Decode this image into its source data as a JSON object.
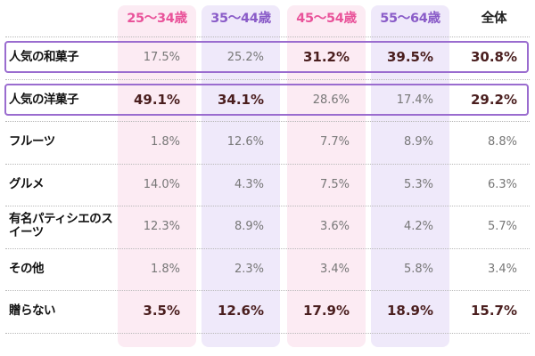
{
  "chart_data": {
    "type": "table",
    "columns": [
      "25〜34歳",
      "35〜44歳",
      "45〜54歳",
      "55〜64歳",
      "全体"
    ],
    "column_colors": [
      "#e9539a",
      "#8a5cc8",
      "#e9539a",
      "#8a5cc8",
      "#222222"
    ],
    "column_backgrounds": [
      "#fcebf3",
      "#efe9fa",
      "#fcebf3",
      "#efe9fa",
      "transparent"
    ],
    "highlight_border_color": "#9a6ccf",
    "highlighted_rows": [
      0,
      1
    ],
    "rows": [
      {
        "label": "人気の和菓子",
        "values": [
          "17.5%",
          "25.2%",
          "31.2%",
          "39.5%",
          "30.8%"
        ],
        "bold": [
          false,
          false,
          true,
          true,
          true
        ]
      },
      {
        "label": "人気の洋菓子",
        "values": [
          "49.1%",
          "34.1%",
          "28.6%",
          "17.4%",
          "29.2%"
        ],
        "bold": [
          true,
          true,
          false,
          false,
          true
        ]
      },
      {
        "label": "フルーツ",
        "values": [
          "1.8%",
          "12.6%",
          "7.7%",
          "8.9%",
          "8.8%"
        ],
        "bold": [
          false,
          false,
          false,
          false,
          false
        ]
      },
      {
        "label": "グルメ",
        "values": [
          "14.0%",
          "4.3%",
          "7.5%",
          "5.3%",
          "6.3%"
        ],
        "bold": [
          false,
          false,
          false,
          false,
          false
        ]
      },
      {
        "label": "有名パティシエのスイーツ",
        "values": [
          "12.3%",
          "8.9%",
          "3.6%",
          "4.2%",
          "5.7%"
        ],
        "bold": [
          false,
          false,
          false,
          false,
          false
        ]
      },
      {
        "label": "その他",
        "values": [
          "1.8%",
          "2.3%",
          "3.4%",
          "5.8%",
          "3.4%"
        ],
        "bold": [
          false,
          false,
          false,
          false,
          false
        ]
      },
      {
        "label": "贈らない",
        "values": [
          "3.5%",
          "12.6%",
          "17.9%",
          "18.9%",
          "15.7%"
        ],
        "bold": [
          true,
          true,
          true,
          true,
          true
        ]
      }
    ]
  }
}
